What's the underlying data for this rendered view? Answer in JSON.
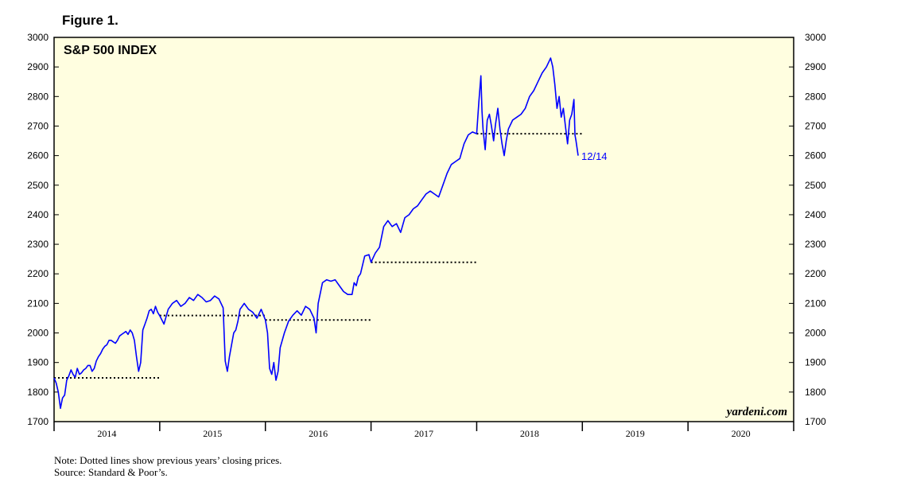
{
  "figure_label": "Figure 1.",
  "notes": {
    "line1": "Note: Dotted lines show previous years’ closing prices.",
    "line2": "Source: Standard & Poor’s."
  },
  "chart_data": {
    "type": "line",
    "title": "S&P 500 INDEX",
    "xlabel": "",
    "ylabel": "",
    "ylim": [
      1700,
      3000
    ],
    "y_ticks": [
      1700,
      1800,
      1900,
      2000,
      2100,
      2200,
      2300,
      2400,
      2500,
      2600,
      2700,
      2800,
      2900,
      3000
    ],
    "y_tick_labels": [
      "1700",
      "1800",
      "1900",
      "2000",
      "2100",
      "2200",
      "2300",
      "2400",
      "2500",
      "2600",
      "2700",
      "2800",
      "2900",
      "3000"
    ],
    "x_categories": [
      "2014",
      "2015",
      "2016",
      "2017",
      "2018",
      "2019",
      "2020"
    ],
    "xlim": [
      2014.0,
      2021.0
    ],
    "grid": false,
    "background": "#fffee0",
    "line_color": "#0000ff",
    "end_label": "12/14",
    "end_label_color": "#0000ff",
    "watermark": "yardeni.com",
    "reference_lines": [
      {
        "value": 1848,
        "x_start": 2014.0,
        "x_end": 2015.0
      },
      {
        "value": 2059,
        "x_start": 2015.0,
        "x_end": 2016.0
      },
      {
        "value": 2044,
        "x_start": 2016.0,
        "x_end": 2017.0
      },
      {
        "value": 2239,
        "x_start": 2017.0,
        "x_end": 2018.0
      },
      {
        "value": 2674,
        "x_start": 2018.0,
        "x_end": 2019.0
      }
    ],
    "series": [
      {
        "x": [
          2014.0,
          2014.02,
          2014.04,
          2014.06,
          2014.08,
          2014.1,
          2014.12,
          2014.14,
          2014.16,
          2014.18,
          2014.2,
          2014.22,
          2014.24,
          2014.26,
          2014.28,
          2014.3,
          2014.32,
          2014.34,
          2014.36,
          2014.38,
          2014.4,
          2014.42,
          2014.44,
          2014.46,
          2014.48,
          2014.5,
          2014.52,
          2014.54,
          2014.56,
          2014.58,
          2014.6,
          2014.62,
          2014.64,
          2014.66,
          2014.68,
          2014.7,
          2014.72,
          2014.74,
          2014.76,
          2014.78,
          2014.8,
          2014.82,
          2014.84,
          2014.86,
          2014.88,
          2014.9,
          2014.92,
          2014.94,
          2014.96,
          2014.98,
          2015.0,
          2015.04,
          2015.08,
          2015.12,
          2015.16,
          2015.2,
          2015.24,
          2015.28,
          2015.32,
          2015.36,
          2015.4,
          2015.44,
          2015.48,
          2015.52,
          2015.56,
          2015.6,
          2015.62,
          2015.64,
          2015.66,
          2015.68,
          2015.7,
          2015.72,
          2015.74,
          2015.76,
          2015.78,
          2015.8,
          2015.84,
          2015.88,
          2015.92,
          2015.96,
          2016.0,
          2016.02,
          2016.04,
          2016.06,
          2016.08,
          2016.1,
          2016.12,
          2016.14,
          2016.18,
          2016.22,
          2016.26,
          2016.3,
          2016.34,
          2016.38,
          2016.42,
          2016.46,
          2016.48,
          2016.5,
          2016.54,
          2016.58,
          2016.62,
          2016.66,
          2016.7,
          2016.74,
          2016.78,
          2016.82,
          2016.84,
          2016.86,
          2016.88,
          2016.9,
          2016.94,
          2016.98,
          2017.0,
          2017.04,
          2017.08,
          2017.12,
          2017.16,
          2017.2,
          2017.24,
          2017.28,
          2017.32,
          2017.36,
          2017.4,
          2017.44,
          2017.48,
          2017.52,
          2017.56,
          2017.6,
          2017.64,
          2017.68,
          2017.72,
          2017.76,
          2017.8,
          2017.84,
          2017.88,
          2017.92,
          2017.96,
          2018.0,
          2018.02,
          2018.04,
          2018.05,
          2018.06,
          2018.08,
          2018.1,
          2018.12,
          2018.14,
          2018.16,
          2018.18,
          2018.2,
          2018.22,
          2018.24,
          2018.26,
          2018.28,
          2018.3,
          2018.34,
          2018.38,
          2018.42,
          2018.46,
          2018.5,
          2018.54,
          2018.58,
          2018.62,
          2018.66,
          2018.7,
          2018.72,
          2018.74,
          2018.76,
          2018.78,
          2018.8,
          2018.82,
          2018.84,
          2018.86,
          2018.88,
          2018.9,
          2018.92,
          2018.93,
          2018.94,
          2018.96
        ],
        "values": [
          1848,
          1830,
          1800,
          1745,
          1780,
          1790,
          1840,
          1855,
          1875,
          1860,
          1850,
          1880,
          1860,
          1865,
          1875,
          1880,
          1890,
          1890,
          1870,
          1880,
          1905,
          1920,
          1930,
          1945,
          1955,
          1960,
          1975,
          1975,
          1970,
          1965,
          1975,
          1990,
          1995,
          2000,
          2005,
          1995,
          2010,
          2000,
          1975,
          1920,
          1870,
          1900,
          2010,
          2030,
          2050,
          2075,
          2080,
          2065,
          2090,
          2070,
          2058,
          2030,
          2080,
          2100,
          2110,
          2090,
          2100,
          2120,
          2110,
          2130,
          2120,
          2105,
          2110,
          2125,
          2115,
          2085,
          1905,
          1870,
          1920,
          1960,
          2000,
          2010,
          2040,
          2080,
          2090,
          2100,
          2080,
          2070,
          2050,
          2080,
          2044,
          2000,
          1880,
          1860,
          1900,
          1840,
          1870,
          1950,
          2000,
          2040,
          2060,
          2075,
          2060,
          2090,
          2080,
          2050,
          2000,
          2100,
          2170,
          2180,
          2175,
          2180,
          2160,
          2140,
          2130,
          2130,
          2170,
          2160,
          2190,
          2200,
          2260,
          2265,
          2239,
          2270,
          2290,
          2360,
          2380,
          2360,
          2370,
          2340,
          2390,
          2400,
          2420,
          2430,
          2450,
          2470,
          2480,
          2470,
          2460,
          2500,
          2540,
          2570,
          2580,
          2590,
          2640,
          2670,
          2680,
          2674,
          2780,
          2870,
          2750,
          2690,
          2620,
          2720,
          2740,
          2700,
          2650,
          2710,
          2760,
          2690,
          2640,
          2600,
          2650,
          2690,
          2720,
          2730,
          2740,
          2760,
          2800,
          2820,
          2850,
          2880,
          2900,
          2930,
          2900,
          2840,
          2760,
          2800,
          2730,
          2760,
          2700,
          2640,
          2720,
          2740,
          2790,
          2670,
          2650,
          2600
        ]
      }
    ]
  }
}
